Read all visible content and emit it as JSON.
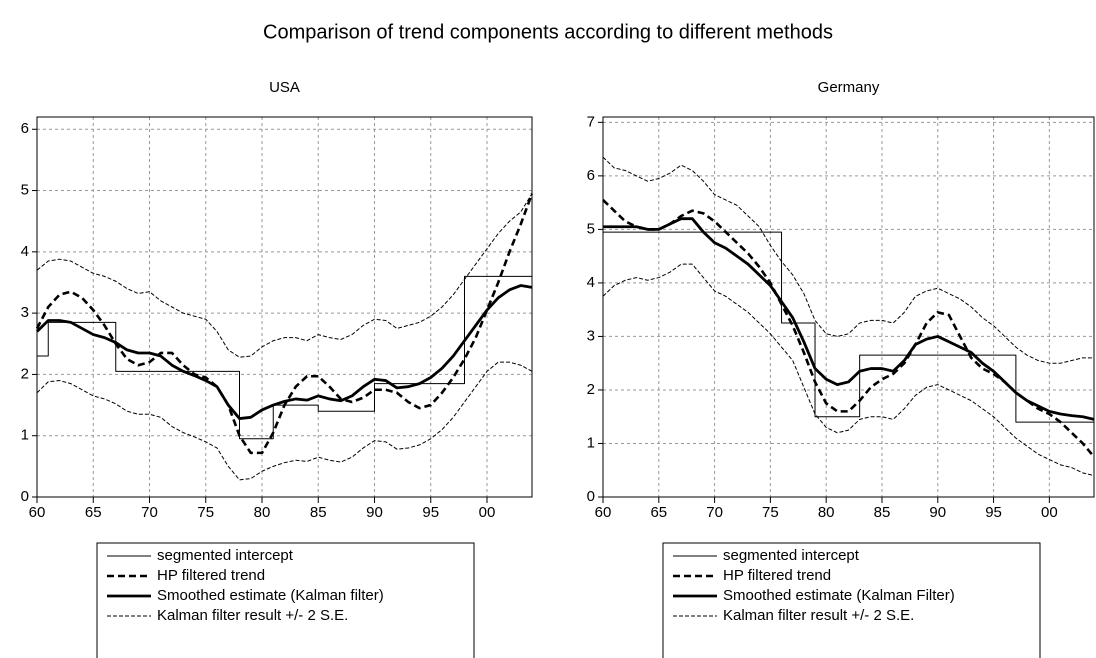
{
  "title": "Comparison of trend components according to different methods",
  "chart_data": [
    {
      "type": "line",
      "title": "USA",
      "x": [
        1960,
        1961,
        1962,
        1963,
        1964,
        1965,
        1966,
        1967,
        1968,
        1969,
        1970,
        1971,
        1972,
        1973,
        1974,
        1975,
        1976,
        1977,
        1978,
        1979,
        1980,
        1981,
        1982,
        1983,
        1984,
        1985,
        1986,
        1987,
        1988,
        1989,
        1990,
        1991,
        1992,
        1993,
        1994,
        1995,
        1996,
        1997,
        1998,
        1999,
        2000,
        2001,
        2002,
        2003,
        2004
      ],
      "xlim": [
        1960,
        2004
      ],
      "xticks": [
        {
          "value": 1960,
          "label": "60"
        },
        {
          "value": 1965,
          "label": "65"
        },
        {
          "value": 1970,
          "label": "70"
        },
        {
          "value": 1975,
          "label": "75"
        },
        {
          "value": 1980,
          "label": "80"
        },
        {
          "value": 1985,
          "label": "85"
        },
        {
          "value": 1990,
          "label": "90"
        },
        {
          "value": 1995,
          "label": "95"
        },
        {
          "value": 2000,
          "label": "00"
        }
      ],
      "ylim": [
        0,
        6.2
      ],
      "yticks": [
        0,
        1,
        2,
        3,
        4,
        5,
        6
      ],
      "grid": true,
      "series": [
        {
          "name": "segmented intercept",
          "color": "#000000",
          "style": "solid-thin",
          "step": true,
          "values": [
            2.3,
            2.85,
            2.85,
            2.85,
            2.85,
            2.85,
            2.85,
            2.05,
            2.05,
            2.05,
            2.05,
            2.05,
            2.05,
            2.05,
            2.05,
            2.05,
            2.05,
            2.05,
            0.95,
            0.95,
            0.95,
            1.5,
            1.5,
            1.5,
            1.5,
            1.4,
            1.4,
            1.4,
            1.4,
            1.4,
            1.85,
            1.85,
            1.85,
            1.85,
            1.85,
            1.85,
            1.85,
            1.85,
            3.6,
            3.6,
            3.6,
            3.6,
            3.6,
            3.6,
            3.6
          ]
        },
        {
          "name": "HP filtered trend",
          "color": "#000000",
          "style": "dashed-thick",
          "values": [
            2.75,
            3.1,
            3.3,
            3.35,
            3.25,
            3.05,
            2.8,
            2.5,
            2.25,
            2.15,
            2.2,
            2.35,
            2.35,
            2.15,
            2.0,
            1.95,
            1.8,
            1.5,
            1.0,
            0.72,
            0.72,
            1.05,
            1.5,
            1.8,
            1.97,
            1.97,
            1.8,
            1.6,
            1.55,
            1.62,
            1.75,
            1.75,
            1.7,
            1.55,
            1.45,
            1.5,
            1.7,
            1.95,
            2.25,
            2.6,
            3.05,
            3.5,
            4.0,
            4.45,
            4.95
          ]
        },
        {
          "name": "Smoothed estimate (Kalman filter)",
          "color": "#000000",
          "style": "solid-thick",
          "values": [
            2.7,
            2.88,
            2.88,
            2.85,
            2.75,
            2.65,
            2.6,
            2.52,
            2.4,
            2.35,
            2.35,
            2.3,
            2.15,
            2.05,
            1.98,
            1.9,
            1.8,
            1.5,
            1.28,
            1.3,
            1.42,
            1.5,
            1.56,
            1.6,
            1.58,
            1.65,
            1.6,
            1.57,
            1.65,
            1.8,
            1.92,
            1.9,
            1.78,
            1.8,
            1.85,
            1.95,
            2.1,
            2.3,
            2.55,
            2.8,
            3.05,
            3.25,
            3.38,
            3.45,
            3.42
          ]
        },
        {
          "name": "Kalman filter result +/- 2 S.E.",
          "color": "#000000",
          "style": "dashed-thin",
          "upper": [
            3.7,
            3.85,
            3.88,
            3.85,
            3.75,
            3.65,
            3.6,
            3.52,
            3.4,
            3.32,
            3.35,
            3.2,
            3.1,
            3.0,
            2.95,
            2.9,
            2.7,
            2.4,
            2.28,
            2.3,
            2.45,
            2.55,
            2.6,
            2.6,
            2.55,
            2.65,
            2.6,
            2.57,
            2.65,
            2.8,
            2.9,
            2.88,
            2.75,
            2.8,
            2.85,
            2.95,
            3.1,
            3.3,
            3.55,
            3.8,
            4.05,
            4.3,
            4.5,
            4.65,
            4.95
          ],
          "lower": [
            1.7,
            1.88,
            1.9,
            1.85,
            1.75,
            1.65,
            1.6,
            1.52,
            1.4,
            1.35,
            1.35,
            1.3,
            1.15,
            1.05,
            0.98,
            0.9,
            0.8,
            0.5,
            0.28,
            0.3,
            0.42,
            0.5,
            0.56,
            0.6,
            0.58,
            0.65,
            0.6,
            0.57,
            0.65,
            0.8,
            0.92,
            0.9,
            0.78,
            0.8,
            0.85,
            0.95,
            1.1,
            1.3,
            1.55,
            1.8,
            2.05,
            2.2,
            2.2,
            2.15,
            2.05
          ]
        }
      ]
    },
    {
      "type": "line",
      "title": "Germany",
      "x": [
        1960,
        1961,
        1962,
        1963,
        1964,
        1965,
        1966,
        1967,
        1968,
        1969,
        1970,
        1971,
        1972,
        1973,
        1974,
        1975,
        1976,
        1977,
        1978,
        1979,
        1980,
        1981,
        1982,
        1983,
        1984,
        1985,
        1986,
        1987,
        1988,
        1989,
        1990,
        1991,
        1992,
        1993,
        1994,
        1995,
        1996,
        1997,
        1998,
        1999,
        2000,
        2001,
        2002,
        2003,
        2004
      ],
      "xlim": [
        1960,
        2004
      ],
      "xticks": [
        {
          "value": 1960,
          "label": "60"
        },
        {
          "value": 1965,
          "label": "65"
        },
        {
          "value": 1970,
          "label": "70"
        },
        {
          "value": 1975,
          "label": "75"
        },
        {
          "value": 1980,
          "label": "80"
        },
        {
          "value": 1985,
          "label": "85"
        },
        {
          "value": 1990,
          "label": "90"
        },
        {
          "value": 1995,
          "label": "95"
        },
        {
          "value": 2000,
          "label": "00"
        }
      ],
      "ylim": [
        0,
        7.1
      ],
      "yticks": [
        0,
        1,
        2,
        3,
        4,
        5,
        6,
        7
      ],
      "grid": true,
      "series": [
        {
          "name": "segmented intercept",
          "color": "#000000",
          "style": "solid-thin",
          "step": true,
          "values": [
            4.95,
            4.95,
            4.95,
            4.95,
            4.95,
            4.95,
            4.95,
            4.95,
            4.95,
            4.95,
            4.95,
            4.95,
            4.95,
            4.95,
            4.95,
            4.95,
            3.25,
            3.25,
            3.25,
            1.5,
            1.5,
            1.5,
            1.5,
            2.65,
            2.65,
            2.65,
            2.65,
            2.65,
            2.65,
            2.65,
            2.65,
            2.65,
            2.65,
            2.65,
            2.65,
            2.65,
            2.65,
            1.4,
            1.4,
            1.4,
            1.4,
            1.4,
            1.4,
            1.4,
            1.4
          ]
        },
        {
          "name": "HP filtered trend",
          "color": "#000000",
          "style": "dashed-thick",
          "values": [
            5.55,
            5.35,
            5.15,
            5.05,
            5.0,
            5.0,
            5.1,
            5.25,
            5.35,
            5.3,
            5.15,
            4.95,
            4.75,
            4.55,
            4.3,
            4.0,
            3.6,
            3.2,
            2.7,
            2.15,
            1.75,
            1.6,
            1.6,
            1.8,
            2.05,
            2.2,
            2.3,
            2.5,
            2.85,
            3.25,
            3.45,
            3.4,
            3.0,
            2.6,
            2.4,
            2.3,
            2.15,
            1.95,
            1.8,
            1.65,
            1.55,
            1.4,
            1.2,
            1.0,
            0.75
          ]
        },
        {
          "name": "Smoothed estimate (Kalman Filter)",
          "color": "#000000",
          "style": "solid-thick",
          "values": [
            5.05,
            5.05,
            5.05,
            5.05,
            5.0,
            5.0,
            5.1,
            5.2,
            5.2,
            4.95,
            4.75,
            4.65,
            4.5,
            4.35,
            4.15,
            3.95,
            3.65,
            3.35,
            2.9,
            2.4,
            2.2,
            2.1,
            2.15,
            2.35,
            2.4,
            2.4,
            2.35,
            2.55,
            2.85,
            2.95,
            3.0,
            2.9,
            2.8,
            2.7,
            2.5,
            2.35,
            2.15,
            1.95,
            1.8,
            1.7,
            1.6,
            1.55,
            1.52,
            1.5,
            1.45
          ]
        },
        {
          "name": "Kalman filter result +/- 2 S.E.",
          "color": "#000000",
          "style": "dashed-thin",
          "upper": [
            6.35,
            6.15,
            6.1,
            6.0,
            5.9,
            5.95,
            6.05,
            6.2,
            6.1,
            5.9,
            5.65,
            5.55,
            5.45,
            5.25,
            5.05,
            4.7,
            4.4,
            4.15,
            3.8,
            3.3,
            3.05,
            3.0,
            3.05,
            3.25,
            3.3,
            3.3,
            3.25,
            3.45,
            3.75,
            3.85,
            3.9,
            3.8,
            3.7,
            3.55,
            3.35,
            3.2,
            3.0,
            2.8,
            2.65,
            2.55,
            2.5,
            2.5,
            2.55,
            2.6,
            2.6
          ],
          "lower": [
            3.75,
            3.95,
            4.05,
            4.1,
            4.05,
            4.1,
            4.2,
            4.35,
            4.35,
            4.1,
            3.85,
            3.75,
            3.6,
            3.45,
            3.25,
            3.05,
            2.8,
            2.55,
            2.05,
            1.55,
            1.3,
            1.2,
            1.25,
            1.45,
            1.5,
            1.5,
            1.45,
            1.65,
            1.9,
            2.05,
            2.1,
            2.0,
            1.9,
            1.8,
            1.65,
            1.5,
            1.3,
            1.1,
            0.95,
            0.8,
            0.7,
            0.6,
            0.55,
            0.45,
            0.4
          ]
        }
      ]
    }
  ]
}
